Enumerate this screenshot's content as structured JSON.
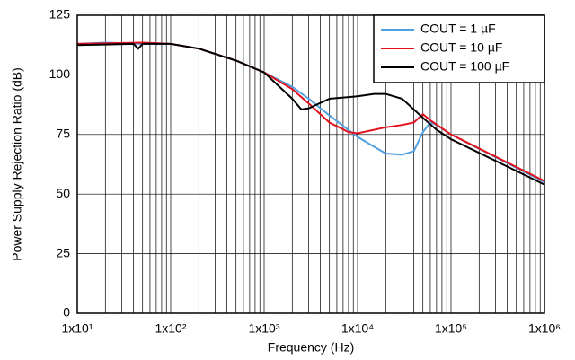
{
  "chart_data": {
    "type": "line",
    "xlabel": "Frequency (Hz)",
    "ylabel": "Power Supply Rejection Ratio (dB)",
    "xscale": "log",
    "xlim": [
      10,
      1000000
    ],
    "xticks": [
      {
        "value": 10,
        "label": "1x10¹"
      },
      {
        "value": 100,
        "label": "1x10²"
      },
      {
        "value": 1000,
        "label": "1x10³"
      },
      {
        "value": 10000,
        "label": "1x10⁴"
      },
      {
        "value": 100000,
        "label": "1x10⁵"
      },
      {
        "value": 1000000,
        "label": "1x10⁶"
      }
    ],
    "ylim": [
      0,
      125
    ],
    "yticks": [
      0,
      25,
      50,
      75,
      100,
      125
    ],
    "grid": true,
    "minor_grid": true,
    "legend": "upper right",
    "series": [
      {
        "name": "COUT = 1 µF",
        "color": "#4f9fe3",
        "x": [
          10,
          20,
          50,
          100,
          200,
          500,
          1000,
          2000,
          3000,
          5000,
          10000,
          20000,
          30000,
          40000,
          50000,
          60000,
          70000,
          100000,
          1000000
        ],
        "values": [
          113,
          113.5,
          113,
          113,
          111,
          106,
          101,
          95,
          90,
          83,
          74,
          67,
          66.5,
          68,
          76,
          80,
          79,
          75,
          55
        ]
      },
      {
        "name": "COUT = 10 µF",
        "color": "#e3101c",
        "x": [
          10,
          50,
          100,
          200,
          500,
          1000,
          2000,
          3000,
          5000,
          8000,
          10000,
          20000,
          30000,
          40000,
          50000,
          60000,
          100000,
          1000000
        ],
        "values": [
          113,
          113.5,
          113,
          111,
          106,
          101,
          94,
          88,
          80,
          76,
          75.5,
          78,
          79,
          80,
          83.5,
          81,
          75,
          55.5
        ]
      },
      {
        "name": "COUT = 100 µF",
        "color": "#000000",
        "x": [
          10,
          40,
          45,
          50,
          100,
          200,
          500,
          1000,
          2000,
          2500,
          3000,
          5000,
          10000,
          15000,
          20000,
          30000,
          50000,
          70000,
          100000,
          1000000
        ],
        "values": [
          112.5,
          113,
          111,
          113,
          113,
          111,
          106,
          101,
          90,
          85.5,
          86,
          90,
          91,
          92,
          92,
          90,
          82,
          77,
          73,
          54
        ]
      }
    ]
  }
}
